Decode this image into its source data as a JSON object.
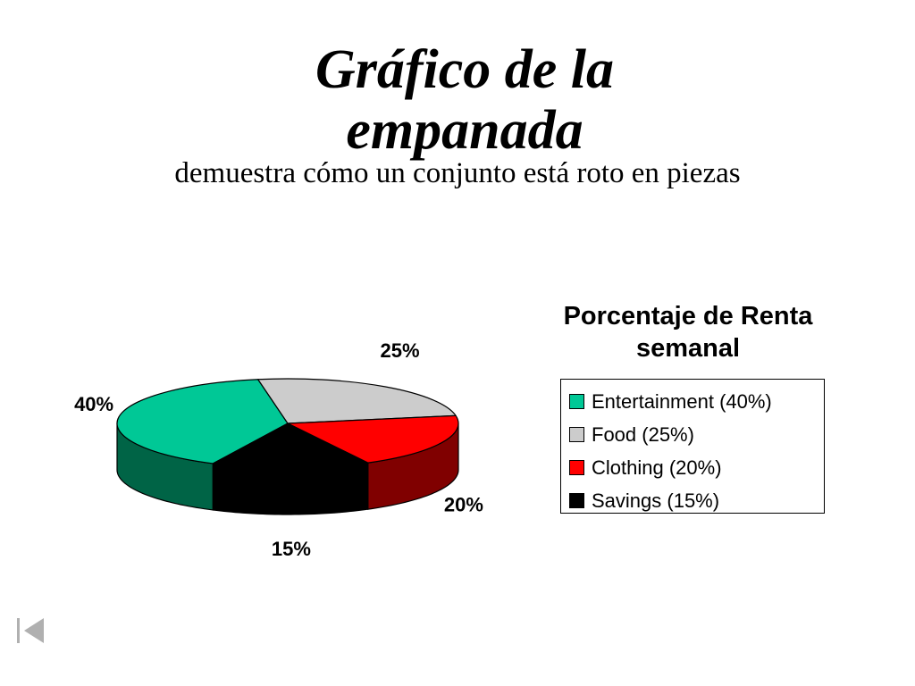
{
  "slide": {
    "title": "Gráfico de la empanada",
    "subtitle": "demuestra cómo un conjunto está roto en piezas"
  },
  "chart_data": {
    "type": "pie",
    "title": "Porcentaje de Renta semanal",
    "legend_position": "right",
    "slices": [
      {
        "name": "Entertainment (40%)",
        "value": 40,
        "label": "40%",
        "color": "#00C896",
        "side_color": "#006446"
      },
      {
        "name": "Food (25%)",
        "value": 25,
        "label": "25%",
        "color": "#CCCCCC",
        "side_color": "#7F7F7F"
      },
      {
        "name": "Clothing (20%)",
        "value": 20,
        "label": "20%",
        "color": "#FF0000",
        "side_color": "#800000"
      },
      {
        "name": "Savings (15%)",
        "value": 15,
        "label": "15%",
        "color": "#000000",
        "side_color": "#000000"
      }
    ]
  },
  "nav": {
    "icon": "first-slide-icon"
  }
}
